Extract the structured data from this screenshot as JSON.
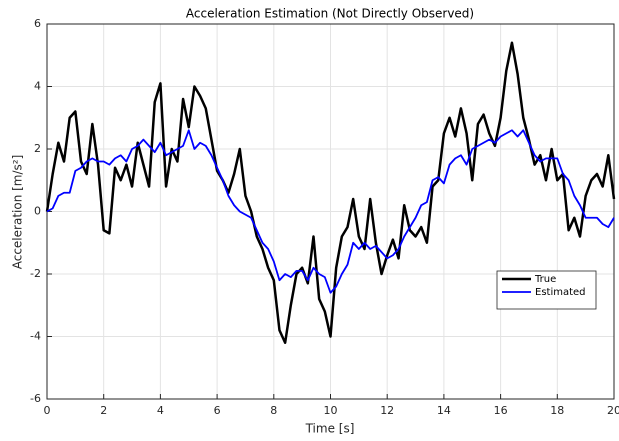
{
  "chart_data": {
    "type": "line",
    "title": "Acceleration Estimation (Not Directly Observed)",
    "x_label": "Time [s]",
    "y_label": "Acceleration [m/s²]",
    "x": [
      0,
      0.2,
      0.4,
      0.6,
      0.8,
      1,
      1.2,
      1.4,
      1.6,
      1.8,
      2,
      2.2,
      2.4,
      2.6,
      2.8,
      3,
      3.2,
      3.4,
      3.6,
      3.8,
      4,
      4.2,
      4.4,
      4.6,
      4.8,
      5,
      5.2,
      5.4,
      5.6,
      5.8,
      6,
      6.2,
      6.4,
      6.6,
      6.8,
      7,
      7.2,
      7.4,
      7.6,
      7.8,
      8,
      8.2,
      8.4,
      8.6,
      8.8,
      9,
      9.2,
      9.4,
      9.6,
      9.8,
      10,
      10.2,
      10.4,
      10.6,
      10.8,
      11,
      11.2,
      11.4,
      11.6,
      11.8,
      12,
      12.2,
      12.4,
      12.6,
      12.8,
      13,
      13.2,
      13.4,
      13.6,
      13.8,
      14,
      14.2,
      14.4,
      14.6,
      14.8,
      15,
      15.2,
      15.4,
      15.6,
      15.8,
      16,
      16.2,
      16.4,
      16.6,
      16.8,
      17,
      17.2,
      17.4,
      17.6,
      17.8,
      18,
      18.2,
      18.4,
      18.6,
      18.8,
      19,
      19.2,
      19.4,
      19.6,
      19.8,
      20
    ],
    "series": [
      {
        "name": "True",
        "color": "#000000",
        "width": 2.5,
        "values": [
          0,
          1.2,
          2.2,
          1.6,
          3,
          3.2,
          1.6,
          1.2,
          2.8,
          1.5,
          -0.6,
          -0.7,
          1.4,
          1,
          1.5,
          0.8,
          2.2,
          1.5,
          0.8,
          3.5,
          4.1,
          0.8,
          2,
          1.6,
          3.6,
          2.7,
          4,
          3.7,
          3.3,
          2.3,
          1.3,
          1,
          0.6,
          1.2,
          2,
          0.5,
          0,
          -0.8,
          -1.2,
          -1.8,
          -2.2,
          -3.8,
          -4.2,
          -3,
          -2,
          -1.8,
          -2.3,
          -0.8,
          -2.8,
          -3.2,
          -4,
          -1.8,
          -0.8,
          -0.5,
          0.4,
          -0.8,
          -1.2,
          0.4,
          -1,
          -2,
          -1.4,
          -0.9,
          -1.5,
          0.2,
          -0.6,
          -0.8,
          -0.5,
          -1,
          0.8,
          1,
          2.5,
          3,
          2.4,
          3.3,
          2.5,
          1,
          2.8,
          3.1,
          2.5,
          2.1,
          3,
          4.5,
          5.4,
          4.4,
          3,
          2.3,
          1.5,
          1.8,
          1,
          2,
          1,
          1.2,
          -0.6,
          -0.2,
          -0.8,
          0.5,
          1,
          1.2,
          0.8,
          1.8,
          0.4
        ]
      },
      {
        "name": "Estimated",
        "color": "#0000ff",
        "width": 1.8,
        "values": [
          0,
          0.1,
          0.5,
          0.6,
          0.6,
          1.3,
          1.4,
          1.6,
          1.7,
          1.6,
          1.6,
          1.5,
          1.7,
          1.8,
          1.6,
          2,
          2.1,
          2.3,
          2.1,
          1.9,
          2.2,
          1.8,
          1.9,
          2,
          2.1,
          2.6,
          2,
          2.2,
          2.1,
          1.8,
          1.4,
          1,
          0.5,
          0.2,
          0,
          -0.1,
          -0.2,
          -0.6,
          -1,
          -1.2,
          -1.6,
          -2.2,
          -2,
          -2.1,
          -1.9,
          -1.9,
          -2.2,
          -1.8,
          -2,
          -2.1,
          -2.6,
          -2.4,
          -2,
          -1.7,
          -1,
          -1.2,
          -1,
          -1.2,
          -1.1,
          -1.3,
          -1.5,
          -1.4,
          -1.2,
          -0.8,
          -0.5,
          -0.2,
          0.2,
          0.3,
          1,
          1.1,
          0.9,
          1.5,
          1.7,
          1.8,
          1.5,
          2,
          2.1,
          2.2,
          2.3,
          2.2,
          2.4,
          2.5,
          2.6,
          2.4,
          2.6,
          2.2,
          1.8,
          1.6,
          1.7,
          1.7,
          1.7,
          1.2,
          1,
          0.5,
          0.2,
          -0.2,
          -0.2,
          -0.2,
          -0.4,
          -0.5,
          -0.2
        ]
      }
    ],
    "xlim": [
      0,
      20
    ],
    "xticks": [
      0,
      2,
      4,
      6,
      8,
      10,
      12,
      14,
      16,
      18,
      20
    ],
    "ylim": [
      -6,
      6
    ],
    "yticks": [
      -6,
      -4,
      -2,
      0,
      2,
      4,
      6
    ],
    "grid": true,
    "legend": "lower-right"
  }
}
